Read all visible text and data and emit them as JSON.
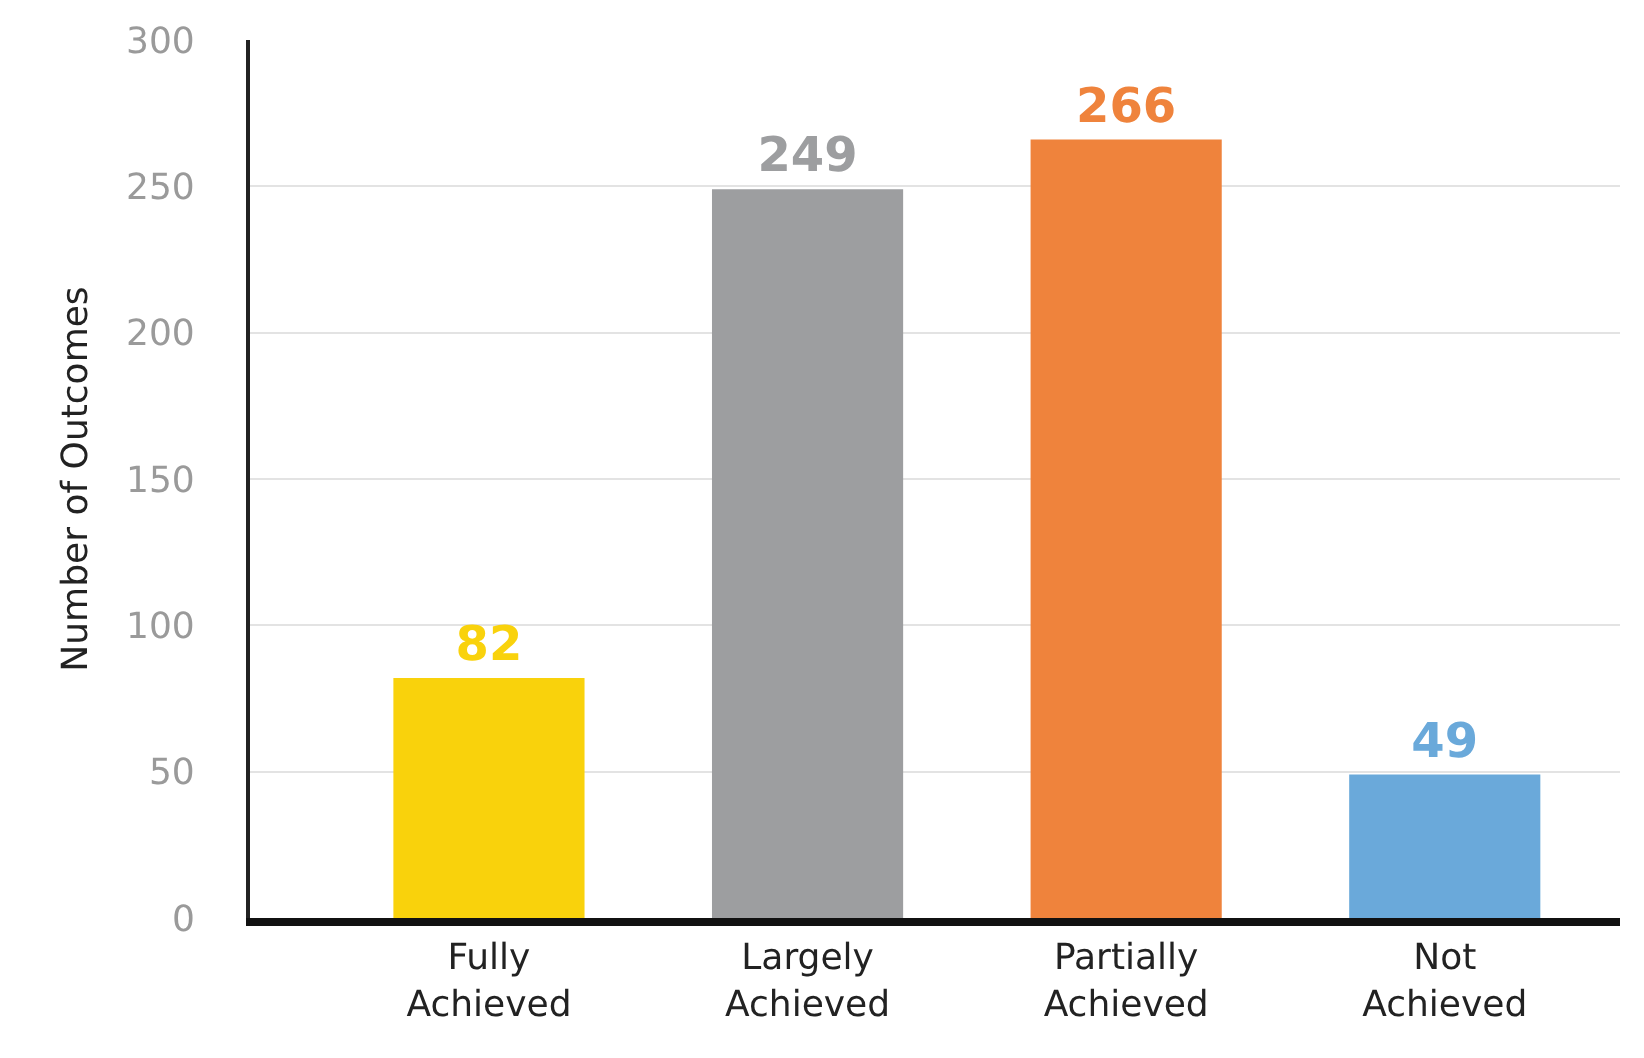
{
  "chart_data": {
    "type": "bar",
    "ylabel": "Number of Outcomes",
    "categories": [
      "Fully Achieved",
      "Largely Achieved",
      "Partially Achieved",
      "Not Achieved"
    ],
    "values": [
      82,
      249,
      266,
      49
    ],
    "colors": [
      "#f9d20c",
      "#9d9ea0",
      "#ef833c",
      "#6aa9da"
    ],
    "ylim": [
      0,
      300
    ],
    "yticks": [
      0,
      50,
      100,
      150,
      200,
      250,
      300
    ],
    "grid": "y",
    "data_labels": true,
    "legend": false
  }
}
